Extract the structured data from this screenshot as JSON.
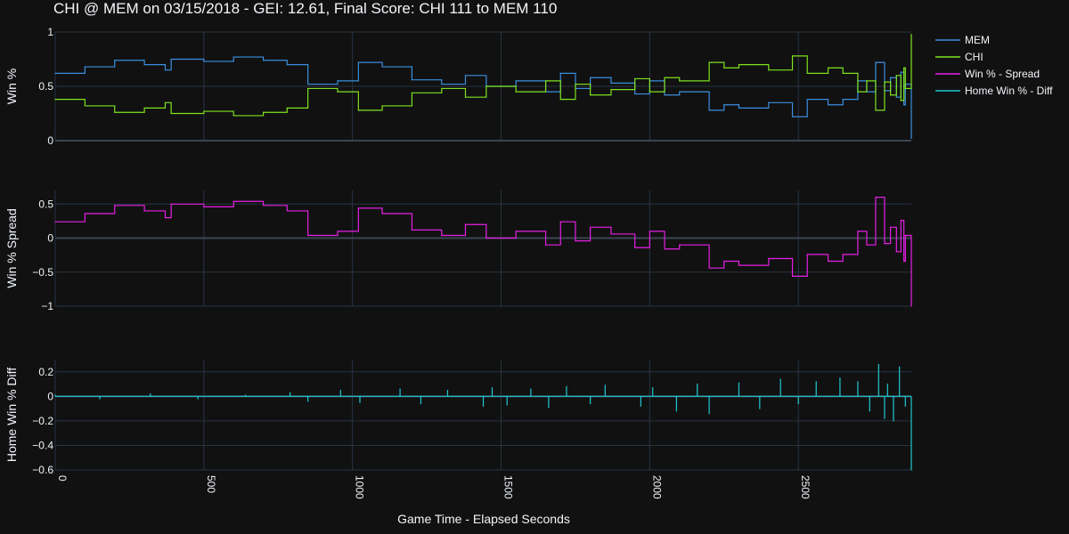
{
  "chart_data": {
    "type": "line",
    "title": "CHI @ MEM on 03/15/2018 - GEI: 12.61, Final Score: CHI 111 to MEM 110",
    "xlabel": "Game Time - Elapsed Seconds",
    "xlim": [
      0,
      2880
    ],
    "x_ticks": [
      0,
      500,
      1000,
      1500,
      2000,
      2500
    ],
    "x_tick_labels": [
      "0",
      "500",
      "1000",
      "1500",
      "2000",
      "2500"
    ],
    "grid": true,
    "legend_position": "top-right",
    "colors": {
      "background": "#111111",
      "grid": "#283442",
      "zeroline": "#3a4553",
      "text": "#f2f5fa",
      "mem": "#3a8fe0",
      "chi": "#7ee21f",
      "spread": "#e61fe6",
      "diff": "#1fc8d2"
    },
    "legend": [
      {
        "label": "MEM",
        "color": "#3a8fe0"
      },
      {
        "label": "CHI",
        "color": "#7ee21f"
      },
      {
        "label": "Win % - Spread",
        "color": "#e61fe6"
      },
      {
        "label": "Home Win % - Diff",
        "color": "#1fc8d2"
      }
    ],
    "panels": [
      {
        "ylabel": "Win %",
        "ylim": [
          0,
          1
        ],
        "y_ticks": [
          0,
          0.5,
          1
        ],
        "y_tick_labels": [
          "0",
          "0.5",
          "1"
        ],
        "series": [
          {
            "name": "MEM",
            "color": "#3a8fe0",
            "x": [
              0,
              100,
              200,
              300,
              370,
              390,
              500,
              600,
              700,
              780,
              850,
              950,
              1020,
              1100,
              1200,
              1300,
              1380,
              1450,
              1550,
              1650,
              1700,
              1750,
              1800,
              1870,
              1950,
              2000,
              2050,
              2100,
              2200,
              2250,
              2300,
              2400,
              2480,
              2530,
              2600,
              2650,
              2700,
              2730,
              2760,
              2790,
              2810,
              2830,
              2845,
              2855,
              2860,
              2880
            ],
            "y": [
              0.62,
              0.68,
              0.74,
              0.7,
              0.65,
              0.75,
              0.73,
              0.77,
              0.74,
              0.7,
              0.52,
              0.55,
              0.72,
              0.68,
              0.56,
              0.52,
              0.6,
              0.5,
              0.55,
              0.45,
              0.62,
              0.48,
              0.58,
              0.53,
              0.43,
              0.55,
              0.42,
              0.45,
              0.28,
              0.33,
              0.3,
              0.35,
              0.22,
              0.38,
              0.33,
              0.38,
              0.55,
              0.45,
              0.72,
              0.46,
              0.58,
              0.4,
              0.63,
              0.33,
              0.52,
              0.02
            ]
          },
          {
            "name": "CHI",
            "color": "#7ee21f",
            "x": [
              0,
              100,
              200,
              300,
              370,
              390,
              500,
              600,
              700,
              780,
              850,
              950,
              1020,
              1100,
              1200,
              1300,
              1380,
              1450,
              1550,
              1650,
              1700,
              1750,
              1800,
              1870,
              1950,
              2000,
              2050,
              2100,
              2200,
              2250,
              2300,
              2400,
              2480,
              2530,
              2600,
              2650,
              2700,
              2730,
              2760,
              2790,
              2810,
              2830,
              2845,
              2855,
              2860,
              2880
            ],
            "y": [
              0.38,
              0.32,
              0.26,
              0.3,
              0.35,
              0.25,
              0.27,
              0.23,
              0.26,
              0.3,
              0.48,
              0.45,
              0.28,
              0.32,
              0.44,
              0.48,
              0.4,
              0.5,
              0.45,
              0.55,
              0.38,
              0.52,
              0.42,
              0.47,
              0.57,
              0.45,
              0.58,
              0.55,
              0.72,
              0.67,
              0.7,
              0.65,
              0.78,
              0.62,
              0.67,
              0.62,
              0.45,
              0.55,
              0.28,
              0.54,
              0.42,
              0.6,
              0.37,
              0.67,
              0.48,
              0.98
            ]
          }
        ]
      },
      {
        "ylabel": "Win % Spread",
        "ylim": [
          -1,
          0.7
        ],
        "y_ticks": [
          -1,
          -0.5,
          0,
          0.5
        ],
        "y_tick_labels": [
          "−1",
          "−0.5",
          "0",
          "0.5"
        ],
        "series": [
          {
            "name": "Win % - Spread",
            "color": "#e61fe6",
            "x": [
              0,
              100,
              200,
              300,
              370,
              390,
              500,
              600,
              700,
              780,
              850,
              950,
              1020,
              1100,
              1200,
              1300,
              1380,
              1450,
              1550,
              1650,
              1700,
              1750,
              1800,
              1870,
              1950,
              2000,
              2050,
              2100,
              2200,
              2250,
              2300,
              2400,
              2480,
              2530,
              2600,
              2650,
              2700,
              2730,
              2760,
              2790,
              2810,
              2830,
              2845,
              2855,
              2860,
              2880
            ],
            "y": [
              0.24,
              0.36,
              0.48,
              0.4,
              0.3,
              0.5,
              0.46,
              0.54,
              0.48,
              0.4,
              0.04,
              0.1,
              0.44,
              0.36,
              0.12,
              0.04,
              0.2,
              0.0,
              0.1,
              -0.1,
              0.24,
              -0.04,
              0.16,
              0.06,
              -0.14,
              0.1,
              -0.16,
              -0.1,
              -0.44,
              -0.34,
              -0.4,
              -0.3,
              -0.56,
              -0.24,
              -0.34,
              -0.24,
              0.1,
              -0.1,
              0.6,
              -0.08,
              0.16,
              -0.2,
              0.26,
              -0.34,
              0.04,
              -1.0
            ]
          }
        ]
      },
      {
        "ylabel": "Home Win % Diff",
        "ylim": [
          -0.6,
          0.3
        ],
        "y_ticks": [
          -0.6,
          -0.4,
          -0.2,
          0,
          0.2
        ],
        "y_tick_labels": [
          "−0.6",
          "−0.4",
          "−0.2",
          "0",
          "0.2"
        ],
        "series": [
          {
            "name": "Home Win % - Diff",
            "color": "#1fc8d2",
            "x": [
              0,
              150,
              320,
              480,
              640,
              790,
              850,
              960,
              1025,
              1160,
              1230,
              1320,
              1440,
              1470,
              1520,
              1600,
              1660,
              1720,
              1800,
              1850,
              1970,
              2010,
              2090,
              2160,
              2200,
              2300,
              2370,
              2440,
              2500,
              2560,
              2640,
              2700,
              2740,
              2770,
              2790,
              2800,
              2820,
              2840,
              2860,
              2880
            ],
            "y": [
              0.01,
              -0.02,
              0.02,
              -0.02,
              0.01,
              0.03,
              -0.04,
              0.05,
              -0.05,
              0.06,
              -0.06,
              0.05,
              -0.08,
              0.07,
              -0.07,
              0.06,
              -0.09,
              0.08,
              -0.06,
              0.09,
              -0.08,
              0.07,
              -0.12,
              0.1,
              -0.14,
              0.11,
              -0.1,
              0.14,
              -0.06,
              0.12,
              0.15,
              0.12,
              -0.12,
              0.26,
              -0.18,
              0.1,
              -0.2,
              0.24,
              -0.08,
              -0.6
            ]
          }
        ]
      }
    ]
  }
}
